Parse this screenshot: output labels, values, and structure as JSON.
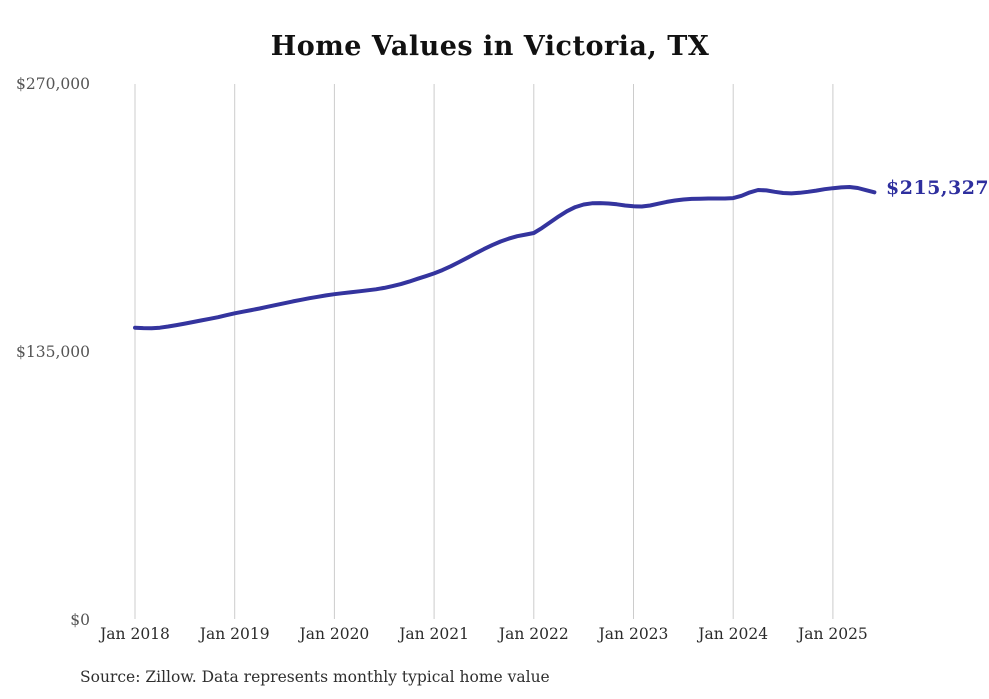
{
  "title": "Home Values in Victoria, TX",
  "end_label": "$215,327",
  "source_note": "Source: Zillow. Data represents monthly typical home value",
  "colors": {
    "line": "#34349e",
    "grid": "#cccccc",
    "end_label_text": "#2e2f9e"
  },
  "chart_data": {
    "type": "line",
    "title": "Home Values in Victoria, TX",
    "xlabel": "",
    "ylabel": "",
    "ylim": [
      0,
      270000
    ],
    "y_tick_labels": [
      "$0",
      "$135,000",
      "$270,000"
    ],
    "x_tick_labels": [
      "Jan 2018",
      "Jan 2019",
      "Jan 2020",
      "Jan 2021",
      "Jan 2022",
      "Jan 2023",
      "Jan 2024",
      "Jan 2025"
    ],
    "grid": "vertical-only",
    "legend": "none",
    "frequency": "monthly",
    "x_start": "Jan 2018",
    "x_end": "Jun 2025",
    "final_value": 215327,
    "values": [
      147000,
      146800,
      146700,
      147000,
      147600,
      148300,
      149100,
      149900,
      150700,
      151500,
      152300,
      153300,
      154300,
      155100,
      155900,
      156700,
      157600,
      158500,
      159400,
      160300,
      161100,
      161900,
      162600,
      163300,
      163900,
      164400,
      164900,
      165400,
      165900,
      166400,
      167100,
      168000,
      169000,
      170300,
      171700,
      173000,
      174400,
      176100,
      178000,
      180100,
      182300,
      184500,
      186700,
      188700,
      190500,
      192000,
      193200,
      194000,
      194800,
      197400,
      200300,
      203200,
      205800,
      207900,
      209200,
      209800,
      209900,
      209700,
      209300,
      208700,
      208300,
      208200,
      208700,
      209600,
      210500,
      211200,
      211700,
      212000,
      212100,
      212200,
      212200,
      212200,
      212400,
      213600,
      215300,
      216500,
      216300,
      215600,
      215000,
      214800,
      215100,
      215600,
      216200,
      216900,
      217400,
      217800,
      218000,
      217500,
      216400,
      215327
    ]
  }
}
